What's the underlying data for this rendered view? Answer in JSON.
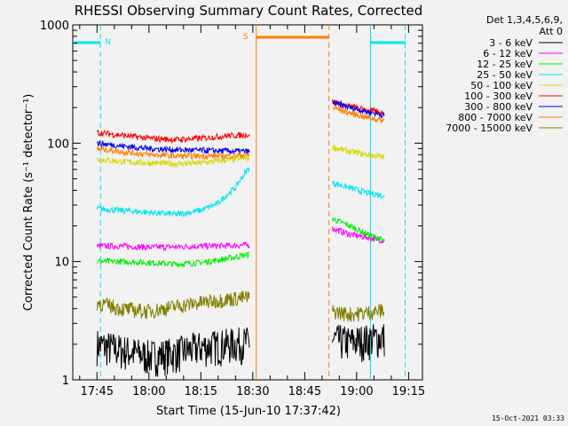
{
  "chart_data": {
    "type": "line",
    "title": "RHESSI Observing Summary Count Rates, Corrected",
    "xlabel": "Start Time (15-Jun-10 17:37:42)",
    "ylabel": "Corrected Count Rate (s⁻¹ detector⁻¹)",
    "yscale": "log",
    "xlim": [
      "17:38",
      "19:19"
    ],
    "ylim": [
      1,
      1000
    ],
    "x_ticks": [
      "17:45",
      "18:00",
      "18:15",
      "18:30",
      "18:45",
      "19:00",
      "19:15"
    ],
    "y_ticks": [
      "1",
      "10",
      "100",
      "1000"
    ],
    "legend_header": [
      "Det 1,3,4,5,6,9,",
      "Att 0"
    ],
    "legend_position": "right",
    "timestamp": "15-Oct-2021 03:33",
    "markers": [
      {
        "label": "N",
        "color": "#00e5ee",
        "time": "17:46"
      },
      {
        "label": "S",
        "color": "#ff7f00",
        "time": "18:30"
      }
    ],
    "series": [
      {
        "name": "3 - 6 keV",
        "color": "#000000",
        "segments": [
          {
            "time": [
              "17:45",
              "17:52",
              "18:00",
              "18:08",
              "18:15",
              "18:22",
              "18:29"
            ],
            "values": [
              2.0,
              1.8,
              1.6,
              1.7,
              1.9,
              2.0,
              2.1
            ]
          },
          {
            "time": [
              "18:53",
              "18:58",
              "19:03",
              "19:08"
            ],
            "values": [
              2.2,
              2.1,
              2.2,
              2.3
            ]
          }
        ]
      },
      {
        "name": "6 - 12 keV",
        "color": "#ff00ff",
        "segments": [
          {
            "time": [
              "17:45",
              "17:52",
              "18:00",
              "18:08",
              "18:15",
              "18:22",
              "18:29"
            ],
            "values": [
              13.5,
              13.5,
              13.2,
              13.3,
              13.5,
              13.6,
              13.8
            ]
          },
          {
            "time": [
              "18:53",
              "18:58",
              "19:03",
              "19:08"
            ],
            "values": [
              19.0,
              17.0,
              16.0,
              15.0
            ]
          }
        ]
      },
      {
        "name": "12 - 25 keV",
        "color": "#00ee00",
        "segments": [
          {
            "time": [
              "17:45",
              "17:52",
              "18:00",
              "18:08",
              "18:15",
              "18:22",
              "18:29"
            ],
            "values": [
              10.0,
              10.0,
              9.8,
              9.5,
              9.8,
              10.5,
              11.5
            ]
          },
          {
            "time": [
              "18:53",
              "18:58",
              "19:03",
              "19:08"
            ],
            "values": [
              23.0,
              20.0,
              17.0,
              15.0
            ]
          }
        ]
      },
      {
        "name": "25 - 50 keV",
        "color": "#00e5ee",
        "segments": [
          {
            "time": [
              "17:45",
              "17:52",
              "18:00",
              "18:08",
              "18:15",
              "18:20",
              "18:25",
              "18:29"
            ],
            "values": [
              28.0,
              27.0,
              26.0,
              25.0,
              27.0,
              31.0,
              42.0,
              62.0
            ]
          },
          {
            "time": [
              "18:53",
              "18:58",
              "19:03",
              "19:08"
            ],
            "values": [
              46.0,
              42.0,
              38.0,
              36.0
            ]
          }
        ]
      },
      {
        "name": "50 - 100 keV",
        "color": "#d8d800",
        "segments": [
          {
            "time": [
              "17:45",
              "17:52",
              "18:00",
              "18:08",
              "18:15",
              "18:22",
              "18:29"
            ],
            "values": [
              73.0,
              70.0,
              68.0,
              67.0,
              68.0,
              72.0,
              75.0
            ]
          },
          {
            "time": [
              "18:53",
              "18:58",
              "19:03",
              "19:08"
            ],
            "values": [
              92.0,
              85.0,
              80.0,
              76.0
            ]
          }
        ]
      },
      {
        "name": "100 - 300 keV",
        "color": "#ff0000",
        "segments": [
          {
            "time": [
              "17:45",
              "17:52",
              "18:00",
              "18:08",
              "18:15",
              "18:22",
              "18:29"
            ],
            "values": [
              123.0,
              117.0,
              110.0,
              107.0,
              110.0,
              115.0,
              118.0
            ]
          },
          {
            "time": [
              "18:53",
              "18:58",
              "19:03",
              "19:08"
            ],
            "values": [
              225.0,
              205.0,
              190.0,
              180.0
            ]
          }
        ]
      },
      {
        "name": "300 - 800 keV",
        "color": "#0000ee",
        "segments": [
          {
            "time": [
              "17:45",
              "17:52",
              "18:00",
              "18:08",
              "18:15",
              "18:22",
              "18:29"
            ],
            "values": [
              100.0,
              95.0,
              90.0,
              88.0,
              87.0,
              86.0,
              85.0
            ]
          },
          {
            "time": [
              "18:53",
              "18:58",
              "19:03",
              "19:08"
            ],
            "values": [
              220.0,
              200.0,
              185.0,
              172.0
            ]
          }
        ]
      },
      {
        "name": "800 - 7000 keV",
        "color": "#ff7f00",
        "segments": [
          {
            "time": [
              "17:45",
              "17:52",
              "18:00",
              "18:08",
              "18:15",
              "18:22",
              "18:29"
            ],
            "values": [
              90.0,
              85.0,
              80.0,
              78.0,
              78.0,
              78.0,
              80.0
            ]
          },
          {
            "time": [
              "18:53",
              "18:58",
              "19:03",
              "19:08"
            ],
            "values": [
              200.0,
              180.0,
              165.0,
              155.0
            ]
          }
        ]
      },
      {
        "name": "7000 - 15000 keV",
        "color": "#808000",
        "segments": [
          {
            "time": [
              "17:45",
              "17:52",
              "18:00",
              "18:08",
              "18:15",
              "18:22",
              "18:29"
            ],
            "values": [
              4.5,
              4.0,
              3.8,
              4.2,
              4.5,
              4.8,
              5.0
            ]
          },
          {
            "time": [
              "18:53",
              "18:58",
              "19:03",
              "19:08"
            ],
            "values": [
              3.8,
              3.6,
              3.7,
              3.9
            ]
          }
        ]
      }
    ]
  }
}
